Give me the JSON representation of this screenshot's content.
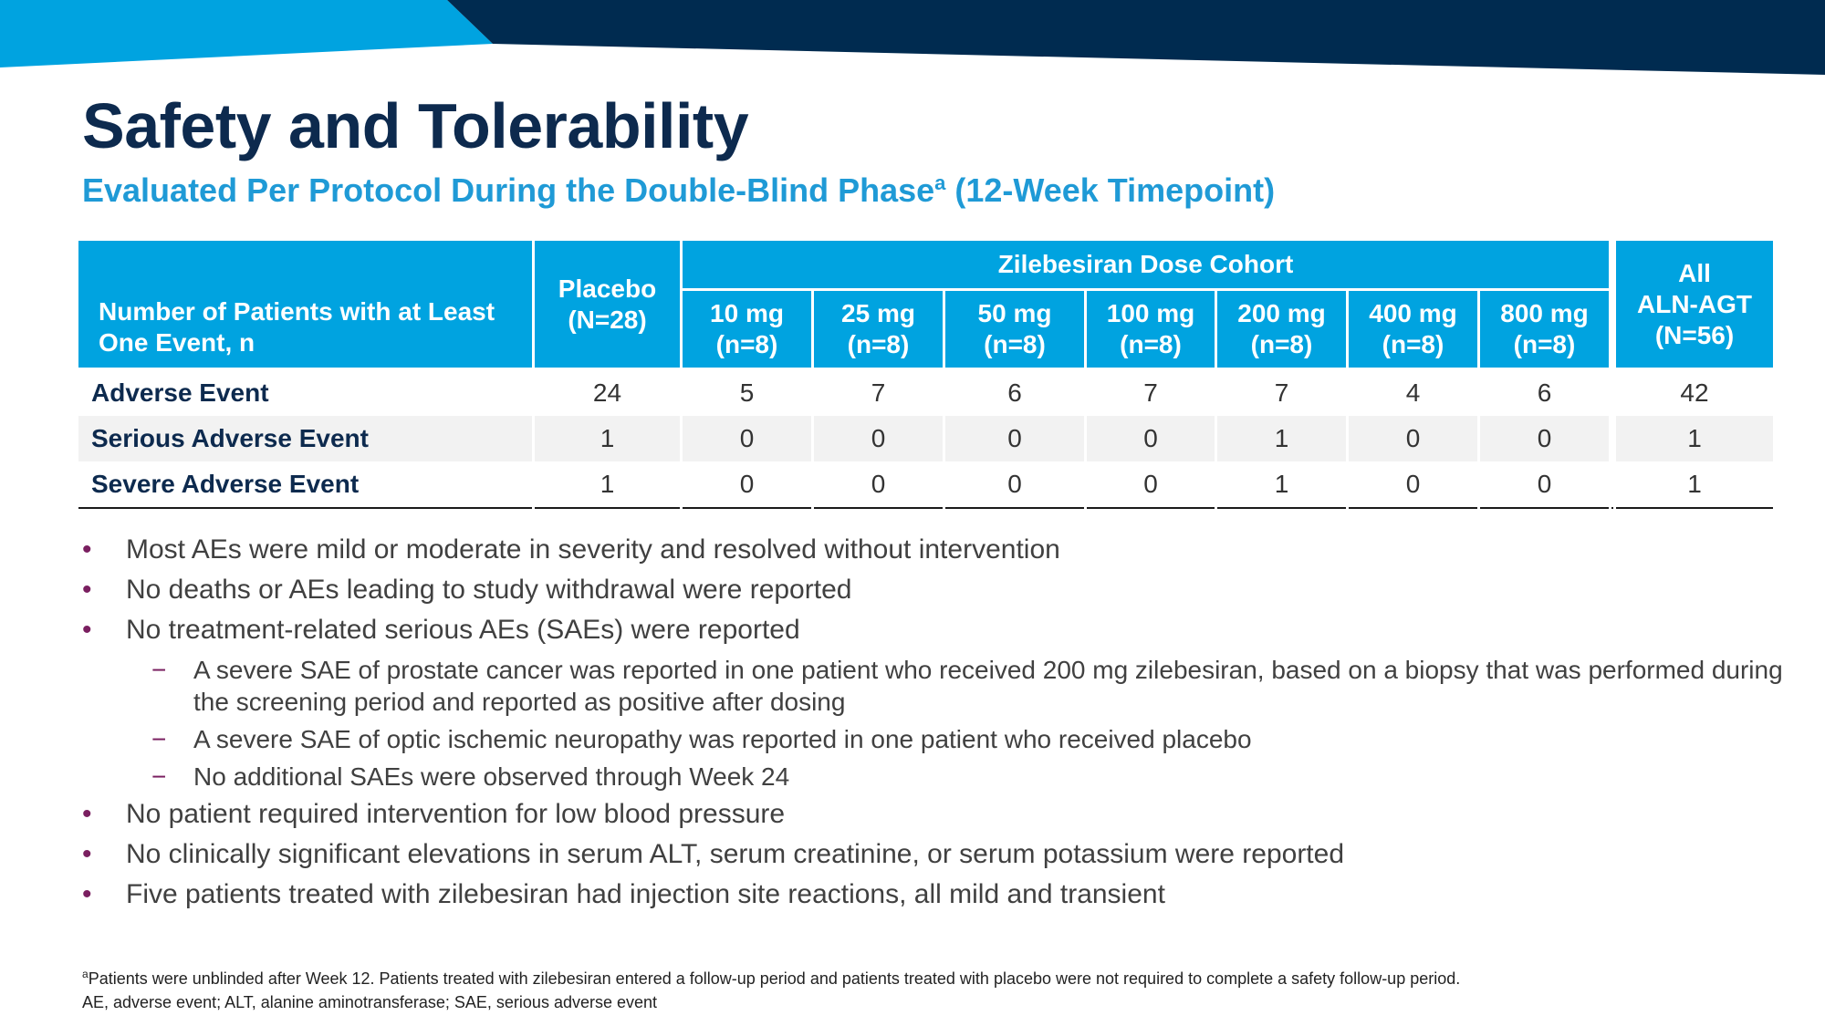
{
  "colors": {
    "navy": "#0d2a4e",
    "banner_dark": "#002b50",
    "accent_blue": "#00a3e0",
    "subtitle_blue": "#1f9ad6",
    "bullet_marker": "#7a1f60"
  },
  "title": "Safety and Tolerability",
  "subtitle": {
    "main": "Evaluated Per Protocol During the Double-Blind Phase",
    "sup": "a",
    "tail": " (12-Week Timepoint)"
  },
  "table": {
    "row_header": "Number of Patients with at Least One Event, n",
    "placebo": {
      "label": "Placebo",
      "n": "(N=28)"
    },
    "group_header": "Zilebesiran Dose Cohort",
    "doses": [
      {
        "label": "10 mg",
        "n": "(n=8)"
      },
      {
        "label": "25 mg",
        "n": "(n=8)"
      },
      {
        "label": "50 mg",
        "n": "(n=8)"
      },
      {
        "label": "100 mg",
        "n": "(n=8)"
      },
      {
        "label": "200 mg",
        "n": "(n=8)"
      },
      {
        "label": "400 mg",
        "n": "(n=8)"
      },
      {
        "label": "800 mg",
        "n": "(n=8)"
      }
    ],
    "all": {
      "line1": "All",
      "line2": "ALN-AGT",
      "n": "(N=56)"
    },
    "rows": [
      {
        "label": "Adverse Event",
        "placebo": "24",
        "doses": [
          "5",
          "7",
          "6",
          "7",
          "7",
          "4",
          "6"
        ],
        "all": "42"
      },
      {
        "label": "Serious Adverse Event",
        "placebo": "1",
        "doses": [
          "0",
          "0",
          "0",
          "0",
          "1",
          "0",
          "0"
        ],
        "all": "1"
      },
      {
        "label": "Severe Adverse Event",
        "placebo": "1",
        "doses": [
          "0",
          "0",
          "0",
          "0",
          "1",
          "0",
          "0"
        ],
        "all": "1"
      }
    ]
  },
  "bullets": [
    {
      "level": 1,
      "marker": "•",
      "text": "Most AEs were mild or moderate in severity and resolved without intervention"
    },
    {
      "level": 1,
      "marker": "•",
      "text": "No deaths or AEs leading to study withdrawal were reported"
    },
    {
      "level": 1,
      "marker": "•",
      "text": "No treatment-related serious AEs (SAEs) were reported"
    },
    {
      "level": 2,
      "marker": "−",
      "text": "A severe SAE of prostate cancer was reported in one patient who received 200 mg zilebesiran, based on a biopsy that was performed during the screening period and reported as positive after dosing"
    },
    {
      "level": 2,
      "marker": "−",
      "text": "A severe SAE of optic ischemic neuropathy was reported in one patient who received placebo"
    },
    {
      "level": 2,
      "marker": "−",
      "text": "No additional SAEs were observed through Week 24"
    },
    {
      "level": 1,
      "marker": "•",
      "text": "No patient required intervention for low blood pressure"
    },
    {
      "level": 1,
      "marker": "•",
      "text": "No clinically significant elevations in serum ALT, serum creatinine, or serum potassium were reported"
    },
    {
      "level": 1,
      "marker": "•",
      "text": "Five patients treated with zilebesiran had injection site reactions, all mild and transient"
    }
  ],
  "footnotes": {
    "sup": "a",
    "line1": "Patients were unblinded after Week 12. Patients treated with zilebesiran entered a follow-up period and patients treated with placebo were not required to complete a safety follow-up period.",
    "line2": "AE, adverse event; ALT, alanine aminotransferase; SAE, serious adverse event"
  }
}
